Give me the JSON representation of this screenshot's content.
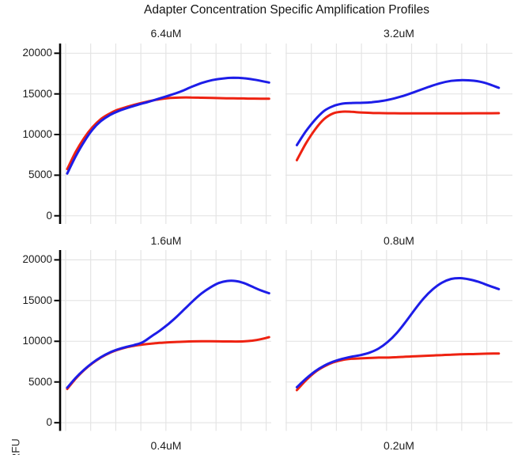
{
  "title": "Adapter Concentration Specific Amplification Profiles",
  "ylabel": "RFU",
  "colors": {
    "series_blue": "#1d1de8",
    "series_red": "#ee2211",
    "grid": "#e4e4e4",
    "axis": "#000000",
    "text": "#1b1b1b"
  },
  "y_axis": {
    "ticks": [
      0,
      5000,
      10000,
      15000,
      20000
    ],
    "range_shown": [
      0,
      20000
    ]
  },
  "x_axis": {
    "tick_labels_visible": false
  },
  "legend": null,
  "chart_data": [
    {
      "type": "line",
      "panel": "6.4uM",
      "series": [
        {
          "name": "red-curve",
          "color": "red",
          "points": [
            [
              0.03,
              5750
            ],
            [
              0.07,
              7850
            ],
            [
              0.11,
              9550
            ],
            [
              0.15,
              10900
            ],
            [
              0.19,
              11900
            ],
            [
              0.23,
              12550
            ],
            [
              0.27,
              13050
            ],
            [
              0.32,
              13450
            ],
            [
              0.37,
              13800
            ],
            [
              0.42,
              14100
            ],
            [
              0.47,
              14350
            ],
            [
              0.52,
              14500
            ],
            [
              0.57,
              14560
            ],
            [
              0.62,
              14560
            ],
            [
              0.67,
              14530
            ],
            [
              0.72,
              14500
            ],
            [
              0.77,
              14470
            ],
            [
              0.82,
              14450
            ],
            [
              0.87,
              14440
            ],
            [
              0.92,
              14420
            ],
            [
              0.99,
              14400
            ]
          ]
        },
        {
          "name": "blue-curve",
          "color": "blue",
          "points": [
            [
              0.03,
              5200
            ],
            [
              0.07,
              7300
            ],
            [
              0.11,
              9100
            ],
            [
              0.15,
              10600
            ],
            [
              0.19,
              11650
            ],
            [
              0.23,
              12350
            ],
            [
              0.27,
              12850
            ],
            [
              0.32,
              13300
            ],
            [
              0.37,
              13700
            ],
            [
              0.42,
              14050
            ],
            [
              0.47,
              14450
            ],
            [
              0.52,
              14850
            ],
            [
              0.57,
              15300
            ],
            [
              0.62,
              15850
            ],
            [
              0.67,
              16350
            ],
            [
              0.72,
              16700
            ],
            [
              0.77,
              16900
            ],
            [
              0.82,
              16980
            ],
            [
              0.87,
              16930
            ],
            [
              0.92,
              16750
            ],
            [
              0.99,
              16400
            ]
          ]
        }
      ]
    },
    {
      "type": "line",
      "panel": "3.2uM",
      "series": [
        {
          "name": "red-curve",
          "color": "red",
          "points": [
            [
              0.05,
              6850
            ],
            [
              0.09,
              8900
            ],
            [
              0.13,
              10600
            ],
            [
              0.17,
              11900
            ],
            [
              0.21,
              12600
            ],
            [
              0.25,
              12820
            ],
            [
              0.29,
              12800
            ],
            [
              0.33,
              12720
            ],
            [
              0.38,
              12660
            ],
            [
              0.43,
              12630
            ],
            [
              0.48,
              12620
            ],
            [
              0.53,
              12610
            ],
            [
              0.58,
              12610
            ],
            [
              0.63,
              12610
            ],
            [
              0.68,
              12610
            ],
            [
              0.73,
              12610
            ],
            [
              0.78,
              12615
            ],
            [
              0.83,
              12620
            ],
            [
              0.88,
              12625
            ],
            [
              0.94,
              12630
            ]
          ]
        },
        {
          "name": "blue-curve",
          "color": "blue",
          "points": [
            [
              0.05,
              8700
            ],
            [
              0.09,
              10400
            ],
            [
              0.13,
              11800
            ],
            [
              0.17,
              12900
            ],
            [
              0.21,
              13500
            ],
            [
              0.25,
              13800
            ],
            [
              0.29,
              13880
            ],
            [
              0.33,
              13900
            ],
            [
              0.38,
              13980
            ],
            [
              0.43,
              14150
            ],
            [
              0.48,
              14450
            ],
            [
              0.53,
              14850
            ],
            [
              0.58,
              15350
            ],
            [
              0.63,
              15850
            ],
            [
              0.68,
              16300
            ],
            [
              0.73,
              16600
            ],
            [
              0.78,
              16700
            ],
            [
              0.83,
              16620
            ],
            [
              0.88,
              16350
            ],
            [
              0.94,
              15750
            ]
          ]
        }
      ]
    },
    {
      "type": "line",
      "panel": "1.6uM",
      "series": [
        {
          "name": "red-curve",
          "color": "red",
          "points": [
            [
              0.03,
              4150
            ],
            [
              0.07,
              5400
            ],
            [
              0.11,
              6450
            ],
            [
              0.15,
              7300
            ],
            [
              0.19,
              8000
            ],
            [
              0.23,
              8550
            ],
            [
              0.27,
              8950
            ],
            [
              0.31,
              9250
            ],
            [
              0.35,
              9450
            ],
            [
              0.39,
              9600
            ],
            [
              0.43,
              9720
            ],
            [
              0.47,
              9800
            ],
            [
              0.51,
              9870
            ],
            [
              0.55,
              9920
            ],
            [
              0.59,
              9960
            ],
            [
              0.63,
              9990
            ],
            [
              0.67,
              10000
            ],
            [
              0.71,
              10000
            ],
            [
              0.75,
              9990
            ],
            [
              0.79,
              9980
            ],
            [
              0.83,
              9970
            ],
            [
              0.87,
              9990
            ],
            [
              0.91,
              10080
            ],
            [
              0.95,
              10250
            ],
            [
              0.99,
              10500
            ]
          ]
        },
        {
          "name": "blue-curve",
          "color": "blue",
          "points": [
            [
              0.03,
              4300
            ],
            [
              0.07,
              5500
            ],
            [
              0.11,
              6500
            ],
            [
              0.15,
              7350
            ],
            [
              0.19,
              8050
            ],
            [
              0.23,
              8600
            ],
            [
              0.27,
              9000
            ],
            [
              0.31,
              9300
            ],
            [
              0.35,
              9550
            ],
            [
              0.39,
              9900
            ],
            [
              0.43,
              10600
            ],
            [
              0.47,
              11300
            ],
            [
              0.51,
              12100
            ],
            [
              0.55,
              13000
            ],
            [
              0.59,
              14000
            ],
            [
              0.63,
              15000
            ],
            [
              0.67,
              15900
            ],
            [
              0.71,
              16600
            ],
            [
              0.75,
              17150
            ],
            [
              0.79,
              17400
            ],
            [
              0.83,
              17400
            ],
            [
              0.87,
              17150
            ],
            [
              0.91,
              16700
            ],
            [
              0.95,
              16250
            ],
            [
              0.99,
              15900
            ]
          ]
        }
      ]
    },
    {
      "type": "line",
      "panel": "0.8uM",
      "series": [
        {
          "name": "red-curve",
          "color": "red",
          "points": [
            [
              0.05,
              4000
            ],
            [
              0.09,
              5200
            ],
            [
              0.13,
              6200
            ],
            [
              0.17,
              6900
            ],
            [
              0.21,
              7400
            ],
            [
              0.25,
              7700
            ],
            [
              0.29,
              7850
            ],
            [
              0.33,
              7900
            ],
            [
              0.37,
              7950
            ],
            [
              0.41,
              8000
            ],
            [
              0.45,
              8000
            ],
            [
              0.49,
              8050
            ],
            [
              0.53,
              8100
            ],
            [
              0.57,
              8150
            ],
            [
              0.61,
              8200
            ],
            [
              0.65,
              8250
            ],
            [
              0.69,
              8300
            ],
            [
              0.73,
              8350
            ],
            [
              0.77,
              8400
            ],
            [
              0.81,
              8420
            ],
            [
              0.85,
              8450
            ],
            [
              0.89,
              8480
            ],
            [
              0.94,
              8500
            ]
          ]
        },
        {
          "name": "blue-curve",
          "color": "blue",
          "points": [
            [
              0.05,
              4350
            ],
            [
              0.09,
              5400
            ],
            [
              0.13,
              6300
            ],
            [
              0.17,
              7000
            ],
            [
              0.21,
              7500
            ],
            [
              0.25,
              7850
            ],
            [
              0.29,
              8100
            ],
            [
              0.33,
              8300
            ],
            [
              0.37,
              8600
            ],
            [
              0.41,
              9100
            ],
            [
              0.45,
              9900
            ],
            [
              0.49,
              11000
            ],
            [
              0.53,
              12400
            ],
            [
              0.57,
              13900
            ],
            [
              0.61,
              15300
            ],
            [
              0.65,
              16400
            ],
            [
              0.69,
              17200
            ],
            [
              0.73,
              17650
            ],
            [
              0.77,
              17750
            ],
            [
              0.81,
              17600
            ],
            [
              0.85,
              17300
            ],
            [
              0.89,
              16900
            ],
            [
              0.94,
              16400
            ]
          ]
        }
      ]
    },
    {
      "type": "line",
      "panel": "0.4uM",
      "series": []
    },
    {
      "type": "line",
      "panel": "0.2uM",
      "series": []
    }
  ]
}
